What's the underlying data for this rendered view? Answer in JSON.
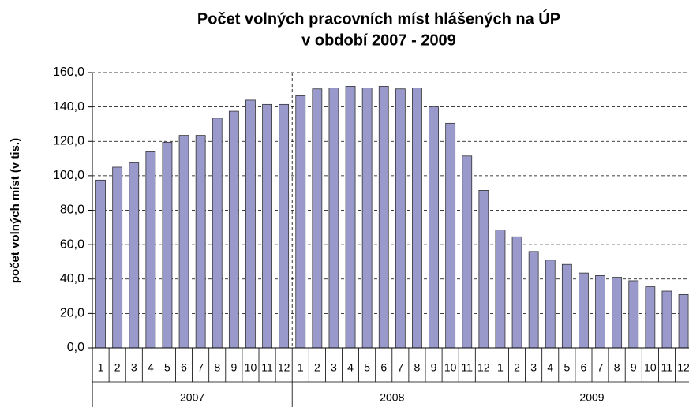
{
  "chart_data": {
    "type": "bar",
    "title": [
      "Počet volných pracovních míst hlášených na ÚP",
      "v období 2007 - 2009"
    ],
    "y_label": "počet volných míst (v tis.)",
    "categories": [
      "1",
      "2",
      "3",
      "4",
      "5",
      "6",
      "7",
      "8",
      "9",
      "10",
      "11",
      "12",
      "1",
      "2",
      "3",
      "4",
      "5",
      "6",
      "7",
      "8",
      "9",
      "10",
      "11",
      "12",
      "1",
      "2",
      "3",
      "4",
      "5",
      "6",
      "7",
      "8",
      "9",
      "10",
      "11",
      "12"
    ],
    "groups": [
      "2007",
      "2008",
      "2009"
    ],
    "values": [
      97.5,
      105,
      107.5,
      114,
      119.5,
      123.5,
      123.5,
      133.5,
      137.5,
      144,
      141.5,
      141.5,
      146.5,
      150.5,
      151,
      152,
      151,
      152,
      150.5,
      151,
      140,
      130.5,
      111.5,
      91.5,
      68.5,
      64.5,
      56,
      51,
      48.5,
      43.5,
      42,
      41,
      39,
      35.5,
      33,
      31
    ],
    "color": "#9999cc",
    "ylim": [
      0,
      160
    ],
    "yticks": [
      {
        "value": 0,
        "label": "0,0"
      },
      {
        "value": 20,
        "label": "20,0"
      },
      {
        "value": 40,
        "label": "40,0"
      },
      {
        "value": 60,
        "label": "60,0"
      },
      {
        "value": 80,
        "label": "80,0"
      },
      {
        "value": 100,
        "label": "100,0"
      },
      {
        "value": 120,
        "label": "120,0"
      },
      {
        "value": 140,
        "label": "140,0"
      },
      {
        "value": 160,
        "label": "160,0"
      }
    ],
    "grid": true
  }
}
